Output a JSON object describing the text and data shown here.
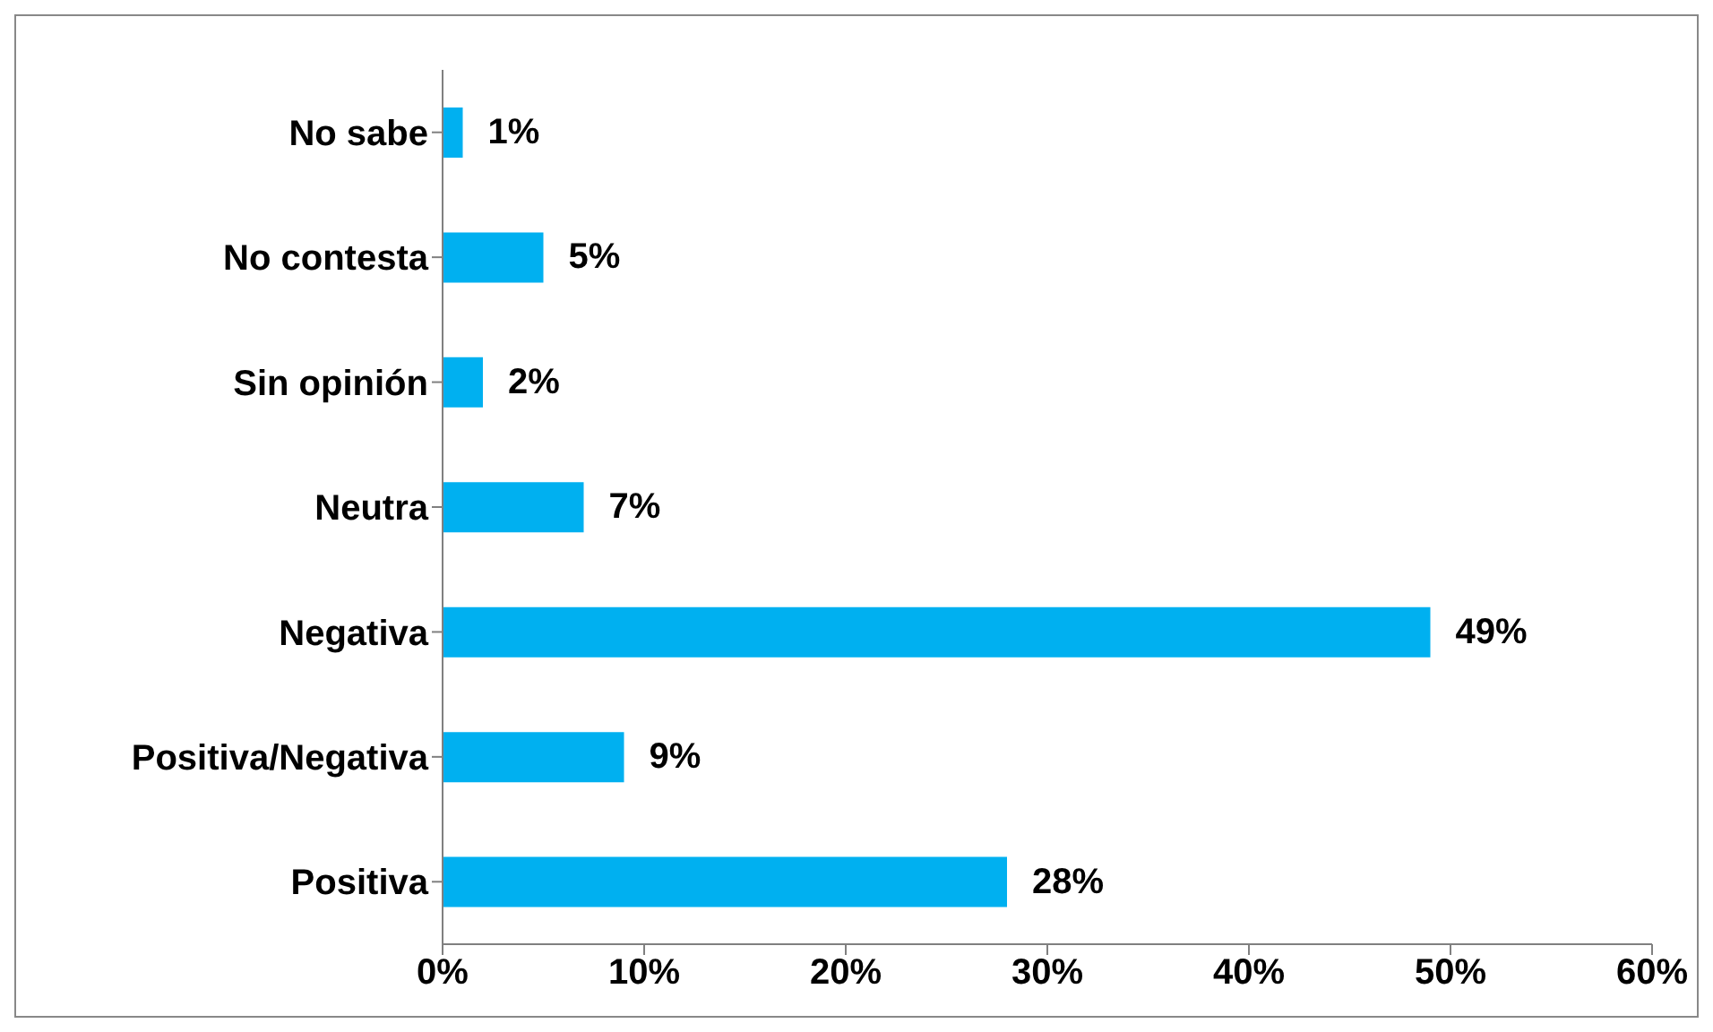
{
  "chart_data": {
    "type": "bar",
    "orientation": "horizontal",
    "categories": [
      "No sabe",
      "No contesta",
      "Sin opinión",
      "Neutra",
      "Negativa",
      "Positiva/Negativa",
      "Positiva"
    ],
    "values": [
      1,
      5,
      2,
      7,
      49,
      9,
      28
    ],
    "value_labels": [
      "1%",
      "5%",
      "2%",
      "7%",
      "49%",
      "9%",
      "28%"
    ],
    "color": "#00b0f0",
    "xlim": [
      0,
      60
    ],
    "xticks": [
      {
        "value": 0,
        "label": "0%"
      },
      {
        "value": 10,
        "label": "10%"
      },
      {
        "value": 20,
        "label": "20%"
      },
      {
        "value": 30,
        "label": "30%"
      },
      {
        "value": 40,
        "label": "40%"
      },
      {
        "value": 50,
        "label": "50%"
      },
      {
        "value": 60,
        "label": "60%"
      }
    ]
  }
}
